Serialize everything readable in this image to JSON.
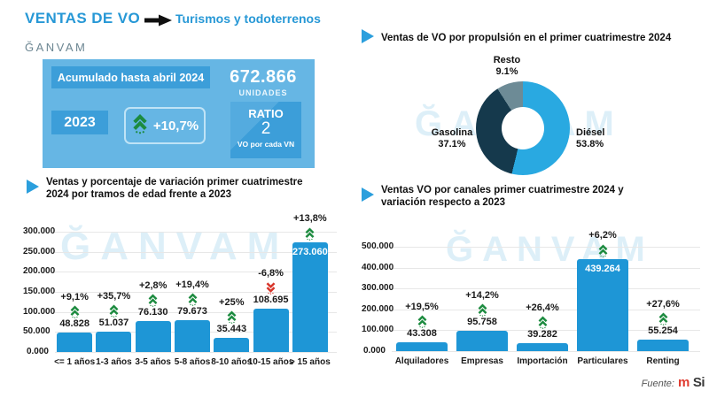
{
  "header": {
    "title": "VENTAS DE VO",
    "subtitle": "Turismos y todoterrenos",
    "logo": "ĞANVAM"
  },
  "summary": {
    "period_label": "Acumulado hasta abril 2024",
    "total_value": "672.866",
    "total_unit": "UNIDADES",
    "year_label": "2023",
    "variation": "+10,7%",
    "ratio_title": "RATIO",
    "ratio_value": "2",
    "ratio_caption": "VO por cada VN"
  },
  "sections": {
    "age": {
      "title_line1": "Ventas y porcentaje de variación primer cuatrimestre",
      "title_line2": "2024 por tramos de edad frente a 2023"
    },
    "propulsion": {
      "title": "Ventas de VO por propulsión en el primer cuatrimestre 2024"
    },
    "channels": {
      "title_line1": "Ventas VO por canales primer cuatrimestre 2024 y",
      "title_line2": "variación respecto a 2023"
    }
  },
  "watermark": "ĞANVAM",
  "footer": {
    "label": "Fuente:",
    "brand_m": "m",
    "brand_si": "Si"
  },
  "colors": {
    "accent_blue": "#2798d6",
    "box_blue": "#66b6e4",
    "strip_blue": "#3c9ed9",
    "bar_blue": "#1e96d6",
    "up_green": "#1c8b3f",
    "down_red": "#d8352a"
  },
  "chart_data": [
    {
      "type": "bar",
      "id": "age-chart",
      "title": "Ventas y porcentaje de variación primer cuatrimestre 2024 por tramos de edad frente a 2023",
      "categories": [
        "<= 1 años",
        "1-3 años",
        "3-5 años",
        "5-8 años",
        "8-10 años",
        "10-15 años",
        "> 15 años"
      ],
      "values": [
        48828,
        51037,
        76130,
        79673,
        35443,
        108695,
        273060
      ],
      "value_labels": [
        "48.828",
        "51.037",
        "76.130",
        "79.673",
        "35.443",
        "108.695",
        "273.060"
      ],
      "variations": [
        "+9,1%",
        "+35,7%",
        "+2,8%",
        "+19,4%",
        "+25%",
        "-6,8%",
        "+13,8%"
      ],
      "variation_directions": [
        "up",
        "up",
        "up",
        "up",
        "up",
        "down",
        "up"
      ],
      "inside_value_index": 6,
      "ylim": [
        0,
        300000
      ],
      "yticks": [
        "0.000",
        "50.000",
        "100.000",
        "150.000",
        "200.000",
        "250.000",
        "300.000"
      ],
      "bar_color": "#1e96d6",
      "up_color": "#1c8b3f",
      "down_color": "#d8352a"
    },
    {
      "type": "donut",
      "id": "propulsion-donut",
      "title": "Ventas de VO por propulsión en el primer cuatrimestre 2024",
      "slices": [
        {
          "label": "Diésel",
          "value": 53.8,
          "value_label": "53.8%",
          "color": "#29a9e1"
        },
        {
          "label": "Gasolina",
          "value": 37.1,
          "value_label": "37.1%",
          "color": "#15394c"
        },
        {
          "label": "Resto",
          "value": 9.1,
          "value_label": "9.1%",
          "color": "#6d8b96"
        }
      ]
    },
    {
      "type": "bar",
      "id": "chan-chart",
      "title": "Ventas VO por canales primer cuatrimestre 2024 y variación respecto a 2023",
      "categories": [
        "Alquiladores",
        "Empresas",
        "Importación",
        "Particulares",
        "Renting"
      ],
      "values": [
        43308,
        95758,
        39282,
        439264,
        55254
      ],
      "value_labels": [
        "43.308",
        "95.758",
        "39.282",
        "439.264",
        "55.254"
      ],
      "variations": [
        "+19,5%",
        "+14,2%",
        "+26,4%",
        "+6,2%",
        "+27,6%"
      ],
      "variation_directions": [
        "up",
        "up",
        "up",
        "up",
        "up"
      ],
      "inside_value_index": 3,
      "ylim": [
        0,
        500000
      ],
      "yticks": [
        "0.000",
        "100.000",
        "200.000",
        "300.000",
        "400.000",
        "500.000"
      ],
      "bar_color": "#1e96d6",
      "up_color": "#1c8b3f",
      "down_color": "#d8352a"
    }
  ]
}
